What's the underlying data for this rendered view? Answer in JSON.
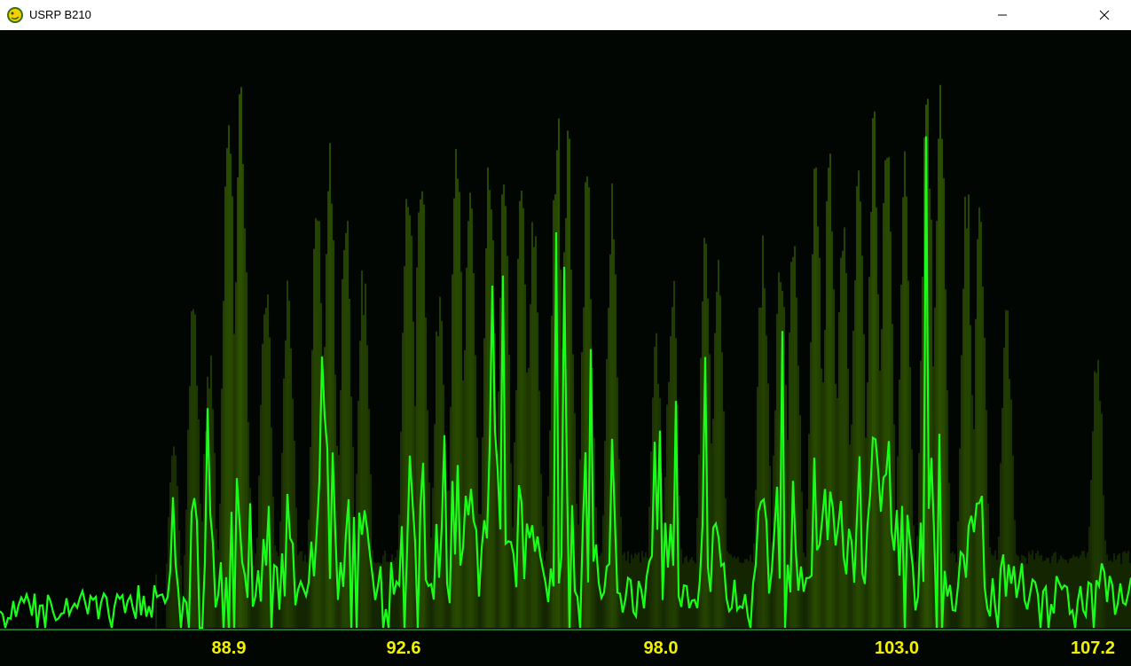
{
  "window": {
    "title": "USRP B210",
    "icon": "python-snake-icon",
    "minimize_icon": "minimize-icon",
    "close_icon": "close-icon"
  },
  "spectrum": {
    "trace_color": "#19ff19",
    "history_color": "#4f8c00",
    "label_color": "#f2f200",
    "baseline_color": "#1f6f1f"
  },
  "axis": {
    "labels": [
      "88.9",
      "92.6",
      "98.0",
      "103.0",
      "107.2"
    ]
  }
}
